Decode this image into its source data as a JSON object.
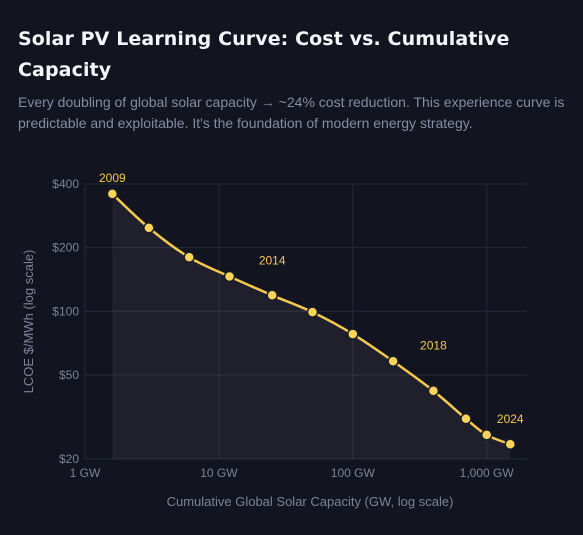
{
  "title": "Solar PV Learning Curve: Cost vs. Cumulative Capacity",
  "subtitle": "Every doubling of global solar capacity → ~24% cost reduction. This experience curve is predictable and exploitable. It's the foundation of modern energy strategy.",
  "colors": {
    "background": "#121420",
    "line": "#f4c94f",
    "point": "#f8d45a",
    "annotation": "#f4c94f",
    "grid": "#272a3a",
    "text_muted": "#7e8299"
  },
  "chart_data": {
    "type": "line",
    "title": "",
    "xlabel": "Cumulative Global Solar Capacity (GW, log scale)",
    "ylabel": "LCOE $/MWh (log scale)",
    "x_scale": "log",
    "y_scale": "log",
    "xlim": [
      1,
      2000
    ],
    "ylim": [
      20,
      400
    ],
    "x_ticks": [
      {
        "value": 1,
        "label": "1 GW"
      },
      {
        "value": 10,
        "label": "10 GW"
      },
      {
        "value": 100,
        "label": "100 GW"
      },
      {
        "value": 1000,
        "label": "1,000 GW"
      }
    ],
    "y_ticks": [
      {
        "value": 400,
        "label": "$400"
      },
      {
        "value": 200,
        "label": "$200"
      },
      {
        "value": 100,
        "label": "$100"
      },
      {
        "value": 50,
        "label": "$50"
      },
      {
        "value": 20,
        "label": "$20"
      }
    ],
    "grid": true,
    "legend": "none",
    "series": [
      {
        "points": [
          {
            "x": 1.6,
            "y": 359
          },
          {
            "x": 3.0,
            "y": 248
          },
          {
            "x": 6.0,
            "y": 180
          },
          {
            "x": 12,
            "y": 146
          },
          {
            "x": 25,
            "y": 119
          },
          {
            "x": 50,
            "y": 99
          },
          {
            "x": 100,
            "y": 78
          },
          {
            "x": 200,
            "y": 58
          },
          {
            "x": 400,
            "y": 42
          },
          {
            "x": 700,
            "y": 31
          },
          {
            "x": 1000,
            "y": 26
          },
          {
            "x": 1500,
            "y": 23.5
          }
        ]
      }
    ],
    "annotations": [
      {
        "text": "2009",
        "x": 1.6,
        "y": 359
      },
      {
        "text": "2014",
        "x": 25,
        "y": 146
      },
      {
        "text": "2018",
        "x": 400,
        "y": 58
      },
      {
        "text": "2024",
        "x": 1500,
        "y": 26
      }
    ]
  }
}
